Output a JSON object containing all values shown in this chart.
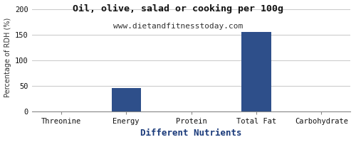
{
  "title": "Oil, olive, salad or cooking per 100g",
  "subtitle": "www.dietandfitnesstoday.com",
  "xlabel": "Different Nutrients",
  "ylabel": "Percentage of RDH (%)",
  "categories": [
    "Threonine",
    "Energy",
    "Protein",
    "Total Fat",
    "Carbohydrate"
  ],
  "values": [
    0,
    45,
    0,
    155,
    0
  ],
  "bar_color": "#2e4f8a",
  "ylim": [
    0,
    210
  ],
  "yticks": [
    0,
    50,
    100,
    150,
    200
  ],
  "background_color": "#ffffff",
  "plot_bg_color": "#ffffff",
  "title_fontsize": 9.5,
  "subtitle_fontsize": 8,
  "xlabel_fontsize": 9,
  "ylabel_fontsize": 7,
  "tick_fontsize": 7.5,
  "grid_color": "#cccccc"
}
